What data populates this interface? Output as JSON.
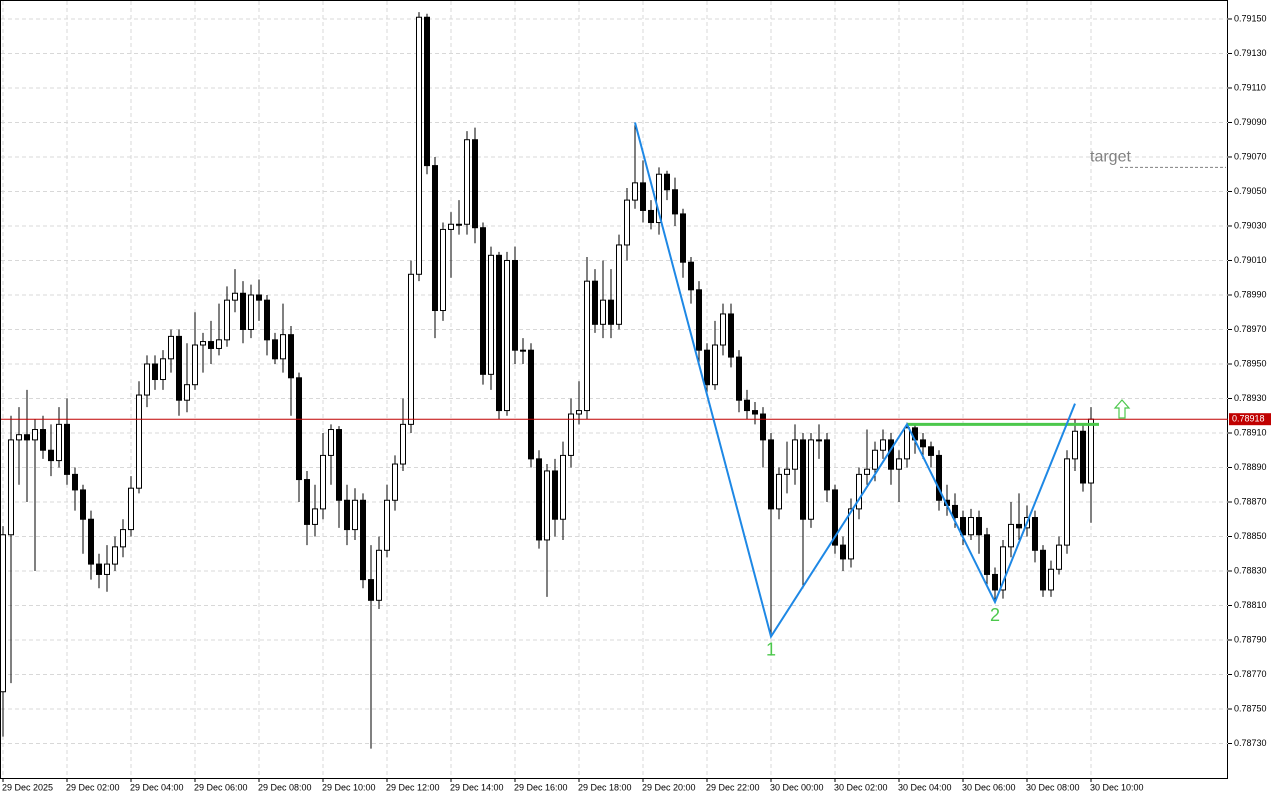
{
  "chart_data": {
    "type": "candlestick",
    "categories": [
      "29 Dec 2025",
      null,
      null,
      null,
      null,
      null,
      null,
      null,
      "29 Dec 02:00",
      null,
      null,
      null,
      null,
      null,
      null,
      null,
      "29 Dec 04:00",
      null,
      null,
      null,
      null,
      null,
      null,
      null,
      "29 Dec 06:00",
      null,
      null,
      null,
      null,
      null,
      null,
      null,
      "29 Dec 08:00",
      null,
      null,
      null,
      null,
      null,
      null,
      null,
      "29 Dec 10:00",
      null,
      null,
      null,
      null,
      null,
      null,
      null,
      "29 Dec 12:00",
      null,
      null,
      null,
      null,
      null,
      null,
      null,
      "29 Dec 14:00",
      null,
      null,
      null,
      null,
      null,
      null,
      null,
      "29 Dec 16:00",
      null,
      null,
      null,
      null,
      null,
      null,
      null,
      "29 Dec 18:00",
      null,
      null,
      null,
      null,
      null,
      null,
      null,
      "29 Dec 20:00",
      null,
      null,
      null,
      null,
      null,
      null,
      null,
      "29 Dec 22:00",
      null,
      null,
      null,
      null,
      null,
      null,
      null,
      "30 Dec 00:00",
      null,
      null,
      null,
      null,
      null,
      null,
      null,
      "30 Dec 02:00",
      null,
      null,
      null,
      null,
      null,
      null,
      null,
      "30 Dec 04:00",
      null,
      null,
      null,
      null,
      null,
      null,
      null,
      "30 Dec 06:00",
      null,
      null,
      null,
      null,
      null,
      null,
      null,
      "30 Dec 08:00",
      null,
      null,
      null,
      null,
      null,
      null,
      null,
      "30 Dec 10:00"
    ],
    "open": [
      0.7876,
      0.78851,
      0.78906,
      0.78909,
      0.78906,
      0.78912,
      0.789,
      0.78894,
      0.78915,
      0.78886,
      0.78877,
      0.7886,
      0.78834,
      0.78828,
      0.78834,
      0.78844,
      0.78854,
      0.78878,
      0.78932,
      0.7895,
      0.78941,
      0.78953,
      0.78966,
      0.78929,
      0.78938,
      0.78961,
      0.78963,
      0.78959,
      0.78964,
      0.78987,
      0.78991,
      0.7897,
      0.7899,
      0.78987,
      0.78964,
      0.78953,
      0.78967,
      0.78942,
      0.78883,
      0.78857,
      0.78866,
      0.78897,
      0.78912,
      0.78871,
      0.78854,
      0.78871,
      0.78825,
      0.78813,
      0.78842,
      0.78871,
      0.78892,
      0.78915,
      0.79002,
      0.79151,
      0.79065,
      0.78981,
      0.79028,
      0.79031,
      0.79031,
      0.7908,
      0.79029,
      0.78944,
      0.79013,
      0.78923,
      0.7901,
      0.78958,
      0.78958,
      0.78895,
      0.78848,
      0.78888,
      0.7886,
      0.78897,
      0.78921,
      0.78923,
      0.78998,
      0.78973,
      0.78987,
      0.78973,
      0.79019,
      0.79045,
      0.79055,
      0.79039,
      0.79032,
      0.7906,
      0.79051,
      0.79037,
      0.79009,
      0.78993,
      0.78958,
      0.78938,
      0.78961,
      0.78979,
      0.78954,
      0.78929,
      0.78923,
      0.78921,
      0.78906,
      0.78866,
      0.78886,
      0.78889,
      0.78906,
      0.7886,
      0.78906,
      0.78906,
      0.78877,
      0.78845,
      0.78837,
      0.78866,
      0.78886,
      0.78889,
      0.789,
      0.78906,
      0.78889,
      0.78895,
      0.78913,
      0.78906,
      0.78902,
      0.78897,
      0.78871,
      0.78868,
      0.78861,
      0.78851,
      0.78861,
      0.78851,
      0.78828,
      0.78819,
      0.78844,
      0.78857,
      0.78855,
      0.78861,
      0.78842,
      0.78819,
      0.78831,
      0.78845,
      0.78895,
      0.78911,
      0.78881
    ],
    "high": [
      0.78856,
      0.7892,
      0.78925,
      0.78935,
      0.78918,
      0.7892,
      0.78915,
      0.78925,
      0.7893,
      0.7889,
      0.7888,
      0.78865,
      0.7884,
      0.78845,
      0.7885,
      0.7886,
      0.78885,
      0.7894,
      0.78955,
      0.78955,
      0.78958,
      0.7897,
      0.7897,
      0.78962,
      0.7898,
      0.78968,
      0.78975,
      0.78985,
      0.78995,
      0.79005,
      0.78998,
      0.78996,
      0.78999,
      0.7899,
      0.78968,
      0.78985,
      0.78972,
      0.78945,
      0.78888,
      0.7888,
      0.7891,
      0.78915,
      0.78914,
      0.7888,
      0.78878,
      0.78875,
      0.78845,
      0.7885,
      0.7888,
      0.78897,
      0.7893,
      0.7901,
      0.79154,
      0.79153,
      0.7907,
      0.79032,
      0.79038,
      0.79045,
      0.79085,
      0.79087,
      0.79032,
      0.79018,
      0.79015,
      0.79015,
      0.79018,
      0.78965,
      0.78962,
      0.789,
      0.78892,
      0.78895,
      0.78905,
      0.7893,
      0.7894,
      0.79012,
      0.79005,
      0.7901,
      0.79005,
      0.79025,
      0.79052,
      0.7909,
      0.79068,
      0.79045,
      0.79064,
      0.79062,
      0.79058,
      0.7904,
      0.79012,
      0.78998,
      0.78962,
      0.78975,
      0.78985,
      0.78985,
      0.78958,
      0.78935,
      0.78928,
      0.78925,
      0.7891,
      0.7889,
      0.78905,
      0.78915,
      0.7891,
      0.7891,
      0.78915,
      0.7891,
      0.7888,
      0.7885,
      0.78872,
      0.7889,
      0.78912,
      0.78905,
      0.78912,
      0.7891,
      0.789,
      0.78916,
      0.78915,
      0.7891,
      0.78905,
      0.789,
      0.7888,
      0.78875,
      0.78865,
      0.78866,
      0.78865,
      0.78855,
      0.78832,
      0.78848,
      0.7887,
      0.78875,
      0.78868,
      0.78865,
      0.78845,
      0.78836,
      0.7885,
      0.789,
      0.78918,
      0.78915,
      0.78925
    ],
    "low": [
      0.78734,
      0.78765,
      0.7888,
      0.7887,
      0.7883,
      0.78895,
      0.78885,
      0.7889,
      0.7888,
      0.78865,
      0.7884,
      0.78825,
      0.7882,
      0.78818,
      0.7883,
      0.78838,
      0.7885,
      0.78875,
      0.78925,
      0.78935,
      0.78935,
      0.78945,
      0.7892,
      0.78922,
      0.78935,
      0.78945,
      0.7895,
      0.78955,
      0.7896,
      0.7898,
      0.78962,
      0.78965,
      0.78975,
      0.78955,
      0.7895,
      0.78945,
      0.7892,
      0.7887,
      0.78845,
      0.7885,
      0.7886,
      0.7888,
      0.78855,
      0.78845,
      0.78848,
      0.7882,
      0.78727,
      0.78808,
      0.78838,
      0.78865,
      0.78888,
      0.7891,
      0.78998,
      0.7906,
      0.78965,
      0.78975,
      0.79,
      0.79025,
      0.79025,
      0.7902,
      0.78938,
      0.78935,
      0.78918,
      0.7892,
      0.7895,
      0.7895,
      0.7889,
      0.78843,
      0.78815,
      0.7885,
      0.78848,
      0.7889,
      0.78915,
      0.78918,
      0.78968,
      0.78965,
      0.78965,
      0.7897,
      0.7901,
      0.7904,
      0.79032,
      0.79028,
      0.79025,
      0.79045,
      0.7903,
      0.79,
      0.78985,
      0.7895,
      0.78932,
      0.78935,
      0.78955,
      0.78948,
      0.78922,
      0.78918,
      0.78915,
      0.7889,
      0.78792,
      0.7886,
      0.78875,
      0.7888,
      0.7882,
      0.78855,
      0.78895,
      0.7887,
      0.7884,
      0.7883,
      0.78832,
      0.7886,
      0.7888,
      0.78882,
      0.78895,
      0.7888,
      0.7887,
      0.7889,
      0.78898,
      0.78895,
      0.7889,
      0.78865,
      0.78862,
      0.78855,
      0.78845,
      0.78848,
      0.7884,
      0.78822,
      0.78812,
      0.78814,
      0.78838,
      0.78848,
      0.7885,
      0.78835,
      0.78815,
      0.78815,
      0.78828,
      0.7884,
      0.78888,
      0.78876,
      0.78858
    ],
    "close": [
      0.78851,
      0.78906,
      0.78909,
      0.78906,
      0.78912,
      0.789,
      0.78894,
      0.78915,
      0.78886,
      0.78877,
      0.7886,
      0.78834,
      0.78828,
      0.78834,
      0.78844,
      0.78854,
      0.78878,
      0.78932,
      0.7895,
      0.78941,
      0.78953,
      0.78966,
      0.78929,
      0.78938,
      0.78961,
      0.78963,
      0.78959,
      0.78964,
      0.78987,
      0.78991,
      0.7897,
      0.7899,
      0.78987,
      0.78964,
      0.78953,
      0.78967,
      0.78942,
      0.78883,
      0.78857,
      0.78866,
      0.78897,
      0.78912,
      0.78871,
      0.78854,
      0.78871,
      0.78825,
      0.78813,
      0.78842,
      0.78871,
      0.78892,
      0.78915,
      0.79002,
      0.79151,
      0.79065,
      0.78981,
      0.79028,
      0.79031,
      0.79031,
      0.7908,
      0.79029,
      0.78944,
      0.79013,
      0.78923,
      0.7901,
      0.78958,
      0.78958,
      0.78895,
      0.78848,
      0.78888,
      0.7886,
      0.78897,
      0.78921,
      0.78923,
      0.78998,
      0.78973,
      0.78987,
      0.78973,
      0.79019,
      0.79045,
      0.79055,
      0.79039,
      0.79032,
      0.7906,
      0.79051,
      0.79037,
      0.79009,
      0.78993,
      0.78958,
      0.78938,
      0.78961,
      0.78979,
      0.78954,
      0.78929,
      0.78923,
      0.78921,
      0.78906,
      0.78866,
      0.78886,
      0.78889,
      0.78906,
      0.7886,
      0.78906,
      0.78906,
      0.78877,
      0.78845,
      0.78837,
      0.78866,
      0.78886,
      0.78889,
      0.789,
      0.78906,
      0.78889,
      0.78895,
      0.78913,
      0.78906,
      0.78902,
      0.78897,
      0.78871,
      0.78868,
      0.78861,
      0.78851,
      0.78861,
      0.78851,
      0.78828,
      0.78819,
      0.78844,
      0.78857,
      0.78855,
      0.78861,
      0.78842,
      0.78819,
      0.78831,
      0.78845,
      0.78895,
      0.78911,
      0.78881,
      0.78918
    ],
    "ylim": [
      0.7871,
      0.79161
    ],
    "yticks": [
      {
        "value": 0.7915,
        "label": "0.79150"
      },
      {
        "value": 0.7913,
        "label": "0.79130"
      },
      {
        "value": 0.7911,
        "label": "0.79110"
      },
      {
        "value": 0.7909,
        "label": "0.79090"
      },
      {
        "value": 0.7907,
        "label": "0.79070"
      },
      {
        "value": 0.7905,
        "label": "0.79050"
      },
      {
        "value": 0.7903,
        "label": "0.79030"
      },
      {
        "value": 0.7901,
        "label": "0.79010"
      },
      {
        "value": 0.7899,
        "label": "0.78990"
      },
      {
        "value": 0.7897,
        "label": "0.78970"
      },
      {
        "value": 0.7895,
        "label": "0.78950"
      },
      {
        "value": 0.7893,
        "label": "0.78930"
      },
      {
        "value": 0.7891,
        "label": "0.78910"
      },
      {
        "value": 0.7889,
        "label": "0.78890"
      },
      {
        "value": 0.7887,
        "label": "0.78870"
      },
      {
        "value": 0.7885,
        "label": "0.78850"
      },
      {
        "value": 0.7883,
        "label": "0.78830"
      },
      {
        "value": 0.7881,
        "label": "0.78810"
      },
      {
        "value": 0.7879,
        "label": "0.78790"
      },
      {
        "value": 0.7877,
        "label": "0.78770"
      },
      {
        "value": 0.7875,
        "label": "0.78750"
      },
      {
        "value": 0.7873,
        "label": "0.78730"
      }
    ],
    "grid": true,
    "up_color": "#ffffff",
    "down_color": "#000000",
    "price_line": {
      "value": 0.78918,
      "label": "0.78918",
      "color": "#c00000"
    },
    "target": {
      "value": 0.79064,
      "label": "target",
      "color": "#808080"
    },
    "pattern": {
      "color": "#1e88e5",
      "index": [
        79,
        96,
        113,
        124,
        134
      ],
      "values": [
        0.7909,
        0.78792,
        0.78915,
        0.78812,
        0.78927
      ],
      "point_labels": [
        {
          "point": 1,
          "label": "1"
        },
        {
          "point": 3,
          "label": "2"
        }
      ],
      "label_color": "#4cc84c"
    },
    "neckline": {
      "value": 0.78915,
      "start": 113,
      "end": 137,
      "color": "#4cc84c"
    }
  }
}
